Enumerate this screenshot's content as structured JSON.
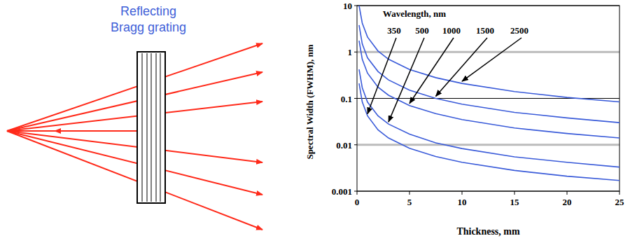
{
  "diagram": {
    "title": [
      "Reflecting",
      "Bragg grating"
    ]
  },
  "chart_data": {
    "type": "line",
    "legend_title": "Wavelength, nm",
    "x_label": "Thickness, mm",
    "y_label": "Spectral Width (FWHM), nm",
    "x": [
      0.2,
      0.5,
      1,
      2,
      3,
      5,
      7.5,
      10,
      15,
      20,
      25
    ],
    "series": [
      {
        "name": "350",
        "color": "#3a5bd9",
        "values": [
          0.21,
          0.084,
          0.042,
          0.021,
          0.014,
          0.0084,
          0.0056,
          0.0042,
          0.0028,
          0.0021,
          0.0017
        ]
      },
      {
        "name": "500",
        "color": "#3a5bd9",
        "values": [
          0.42,
          0.17,
          0.083,
          0.042,
          0.028,
          0.017,
          0.011,
          0.0083,
          0.0055,
          0.0042,
          0.0033
        ]
      },
      {
        "name": "1000",
        "color": "#3a5bd9",
        "values": [
          1.75,
          0.7,
          0.35,
          0.175,
          0.117,
          0.07,
          0.047,
          0.035,
          0.023,
          0.0175,
          0.014
        ]
      },
      {
        "name": "1500",
        "color": "#3a5bd9",
        "values": [
          3.8,
          1.5,
          0.75,
          0.38,
          0.25,
          0.15,
          0.1,
          0.075,
          0.05,
          0.038,
          0.03
        ]
      },
      {
        "name": "2500",
        "color": "#3a5bd9",
        "values": [
          10,
          4.2,
          2.1,
          1.05,
          0.7,
          0.42,
          0.28,
          0.21,
          0.14,
          0.105,
          0.084
        ]
      }
    ],
    "xlim": [
      0,
      25
    ],
    "xticks": [
      0,
      5,
      10,
      15,
      20,
      25
    ],
    "ylim": [
      0.001,
      10
    ],
    "yticks": [
      0.001,
      0.01,
      0.1,
      1,
      10
    ],
    "log": "y",
    "grid": true
  }
}
